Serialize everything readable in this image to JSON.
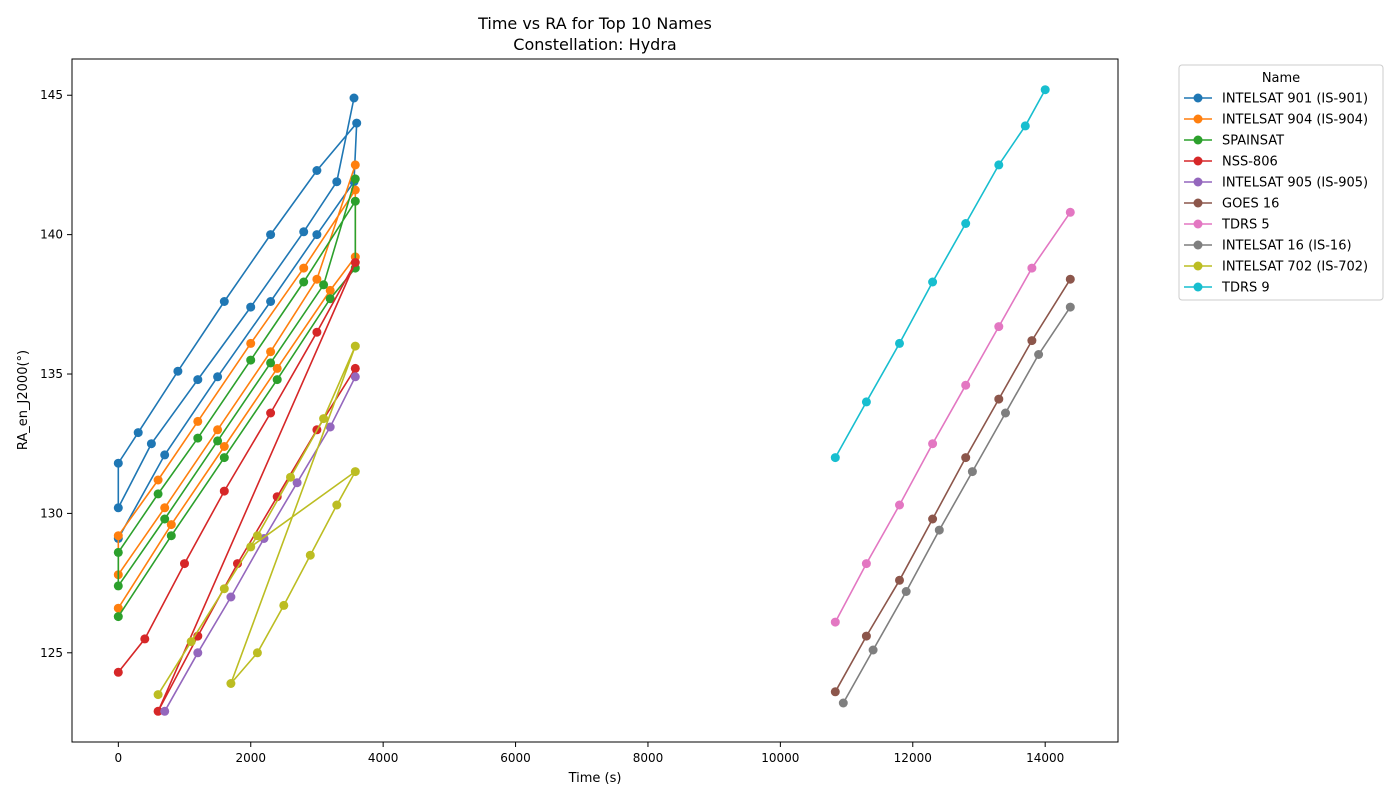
{
  "chart_data": {
    "type": "line",
    "title": "Time vs RA for Top 10 Names",
    "subtitle": "Constellation: Hydra",
    "xlabel": "Time (s)",
    "ylabel": "RA_en_J2000(°)",
    "xlim": [
      -700,
      15100
    ],
    "ylim": [
      121.8,
      146.3
    ],
    "xticks": [
      0,
      2000,
      4000,
      6000,
      8000,
      10000,
      12000,
      14000
    ],
    "yticks": [
      125,
      130,
      135,
      140,
      145
    ],
    "grid": false,
    "legend_title": "Name",
    "legend_position": "outside-right-top",
    "series": [
      {
        "name": "INTELSAT 901 (IS-901)",
        "color": "#1f77b4",
        "points": [
          [
            0,
            129.1
          ],
          [
            700,
            132.1
          ],
          [
            1500,
            134.9
          ],
          [
            2300,
            137.6
          ],
          [
            3000,
            140.0
          ],
          [
            3560,
            141.9
          ],
          [
            3600,
            144.0
          ],
          [
            3000,
            142.3
          ],
          [
            2300,
            140.0
          ],
          [
            1600,
            137.6
          ],
          [
            900,
            135.1
          ],
          [
            300,
            132.9
          ],
          [
            0,
            131.8
          ],
          [
            0,
            130.2
          ],
          [
            500,
            132.5
          ],
          [
            1200,
            134.8
          ],
          [
            2000,
            137.4
          ],
          [
            2800,
            140.1
          ],
          [
            3300,
            141.9
          ],
          [
            3560,
            144.9
          ]
        ]
      },
      {
        "name": "INTELSAT 904 (IS-904)",
        "color": "#ff7f0e",
        "points": [
          [
            0,
            126.6
          ],
          [
            800,
            129.6
          ],
          [
            1600,
            132.4
          ],
          [
            2400,
            135.2
          ],
          [
            3200,
            138.0
          ],
          [
            3580,
            139.2
          ],
          [
            3580,
            141.6
          ],
          [
            2800,
            138.8
          ],
          [
            2000,
            136.1
          ],
          [
            1200,
            133.3
          ],
          [
            600,
            131.2
          ],
          [
            0,
            129.2
          ],
          [
            0,
            127.8
          ],
          [
            700,
            130.2
          ],
          [
            1500,
            133.0
          ],
          [
            2300,
            135.8
          ],
          [
            3000,
            138.4
          ],
          [
            3580,
            142.5
          ]
        ]
      },
      {
        "name": "SPAINSAT",
        "color": "#2ca02c",
        "points": [
          [
            0,
            126.3
          ],
          [
            800,
            129.2
          ],
          [
            1600,
            132.0
          ],
          [
            2400,
            134.8
          ],
          [
            3200,
            137.7
          ],
          [
            3580,
            138.8
          ],
          [
            3580,
            141.2
          ],
          [
            2800,
            138.3
          ],
          [
            2000,
            135.5
          ],
          [
            1200,
            132.7
          ],
          [
            600,
            130.7
          ],
          [
            0,
            128.6
          ],
          [
            0,
            127.4
          ],
          [
            700,
            129.8
          ],
          [
            1500,
            132.6
          ],
          [
            2300,
            135.4
          ],
          [
            3100,
            138.2
          ],
          [
            3580,
            142.0
          ]
        ]
      },
      {
        "name": "NSS-806",
        "color": "#d62728",
        "points": [
          [
            0,
            124.3
          ],
          [
            400,
            125.5
          ],
          [
            1000,
            128.2
          ],
          [
            1600,
            130.8
          ],
          [
            2300,
            133.6
          ],
          [
            3000,
            136.5
          ],
          [
            3580,
            139.0
          ],
          [
            600,
            122.9
          ],
          [
            1200,
            125.6
          ],
          [
            1800,
            128.2
          ],
          [
            2400,
            130.6
          ],
          [
            3000,
            133.0
          ],
          [
            3580,
            135.2
          ]
        ]
      },
      {
        "name": "INTELSAT 905 (IS-905)",
        "color": "#9467bd",
        "points": [
          [
            700,
            122.9
          ],
          [
            1200,
            125.0
          ],
          [
            1700,
            127.0
          ],
          [
            2200,
            129.1
          ],
          [
            2700,
            131.1
          ],
          [
            3200,
            133.1
          ],
          [
            3580,
            134.9
          ]
        ]
      },
      {
        "name": "GOES 16",
        "color": "#8c564b",
        "points": [
          [
            10830,
            123.6
          ],
          [
            11300,
            125.6
          ],
          [
            11800,
            127.6
          ],
          [
            12300,
            129.8
          ],
          [
            12800,
            132.0
          ],
          [
            13300,
            134.1
          ],
          [
            13800,
            136.2
          ],
          [
            14380,
            138.4
          ]
        ]
      },
      {
        "name": "TDRS 5",
        "color": "#e377c2",
        "points": [
          [
            10830,
            126.1
          ],
          [
            11300,
            128.2
          ],
          [
            11800,
            130.3
          ],
          [
            12300,
            132.5
          ],
          [
            12800,
            134.6
          ],
          [
            13300,
            136.7
          ],
          [
            13800,
            138.8
          ],
          [
            14380,
            140.8
          ]
        ]
      },
      {
        "name": "INTELSAT 16 (IS-16)",
        "color": "#7f7f7f",
        "points": [
          [
            10950,
            123.2
          ],
          [
            11400,
            125.1
          ],
          [
            11900,
            127.2
          ],
          [
            12400,
            129.4
          ],
          [
            12900,
            131.5
          ],
          [
            13400,
            133.6
          ],
          [
            13900,
            135.7
          ],
          [
            14380,
            137.4
          ]
        ]
      },
      {
        "name": "INTELSAT 702 (IS-702)",
        "color": "#bcbd22",
        "points": [
          [
            600,
            123.5
          ],
          [
            1100,
            125.4
          ],
          [
            1600,
            127.3
          ],
          [
            2100,
            129.2
          ],
          [
            2600,
            131.3
          ],
          [
            3100,
            133.4
          ],
          [
            3580,
            136.0
          ],
          [
            1700,
            123.9
          ],
          [
            2100,
            125.0
          ],
          [
            2500,
            126.7
          ],
          [
            2900,
            128.5
          ],
          [
            3300,
            130.3
          ],
          [
            3580,
            131.5
          ],
          [
            2000,
            128.8
          ]
        ]
      },
      {
        "name": "TDRS 9",
        "color": "#17becf",
        "points": [
          [
            10830,
            132.0
          ],
          [
            11300,
            134.0
          ],
          [
            11800,
            136.1
          ],
          [
            12300,
            138.3
          ],
          [
            12800,
            140.4
          ],
          [
            13300,
            142.5
          ],
          [
            13700,
            143.9
          ],
          [
            14000,
            145.2
          ]
        ]
      }
    ]
  }
}
